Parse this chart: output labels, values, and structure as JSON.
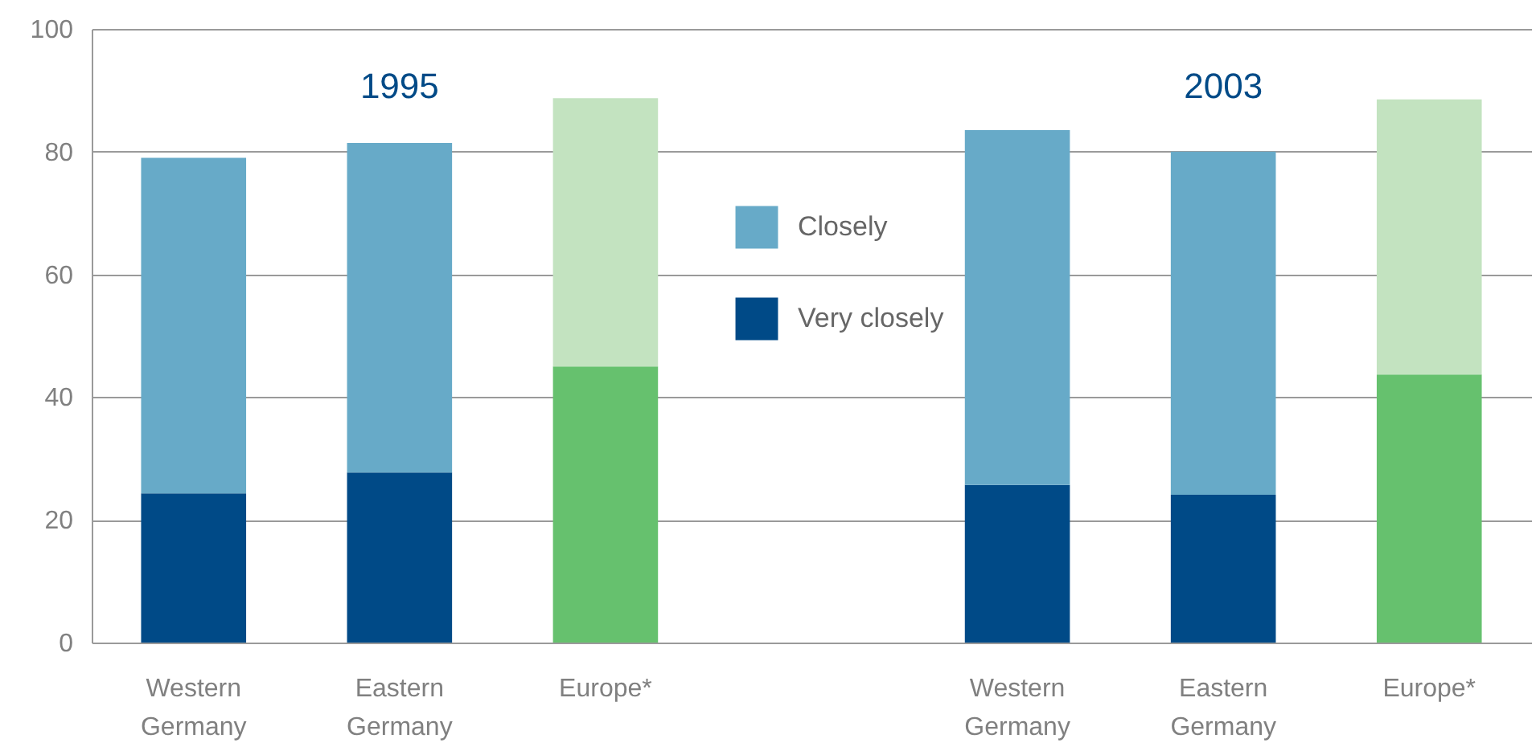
{
  "chart_data": {
    "type": "bar",
    "stacked": true,
    "categories": [
      "Western Germany",
      "Eastern Germany",
      "Europe*",
      null,
      "Western Germany",
      "Eastern Germany",
      "Europe*"
    ],
    "series": [
      {
        "name": "Very closely",
        "color": "#004a87",
        "colors": [
          "#004a87",
          "#004a87",
          "#66c16e",
          null,
          "#004a87",
          "#004a87",
          "#66c16e"
        ],
        "values": [
          24.3,
          27.7,
          45,
          null,
          25.7,
          24.1,
          43.7
        ]
      },
      {
        "name": "Closely",
        "color": "#67aac8",
        "colors": [
          "#67aac8",
          "#67aac8",
          "#c3e3c0",
          null,
          "#67aac8",
          "#67aac8",
          "#c3e3c0"
        ],
        "values": [
          54.7,
          53.7,
          43.7,
          null,
          57.8,
          55.9,
          44.8
        ]
      }
    ],
    "ylim": [
      0,
      100
    ],
    "yticks": [
      0,
      20,
      40,
      60,
      80,
      100
    ],
    "grid": "y",
    "legend": "top",
    "annotations": [
      "1995",
      "2003"
    ]
  }
}
